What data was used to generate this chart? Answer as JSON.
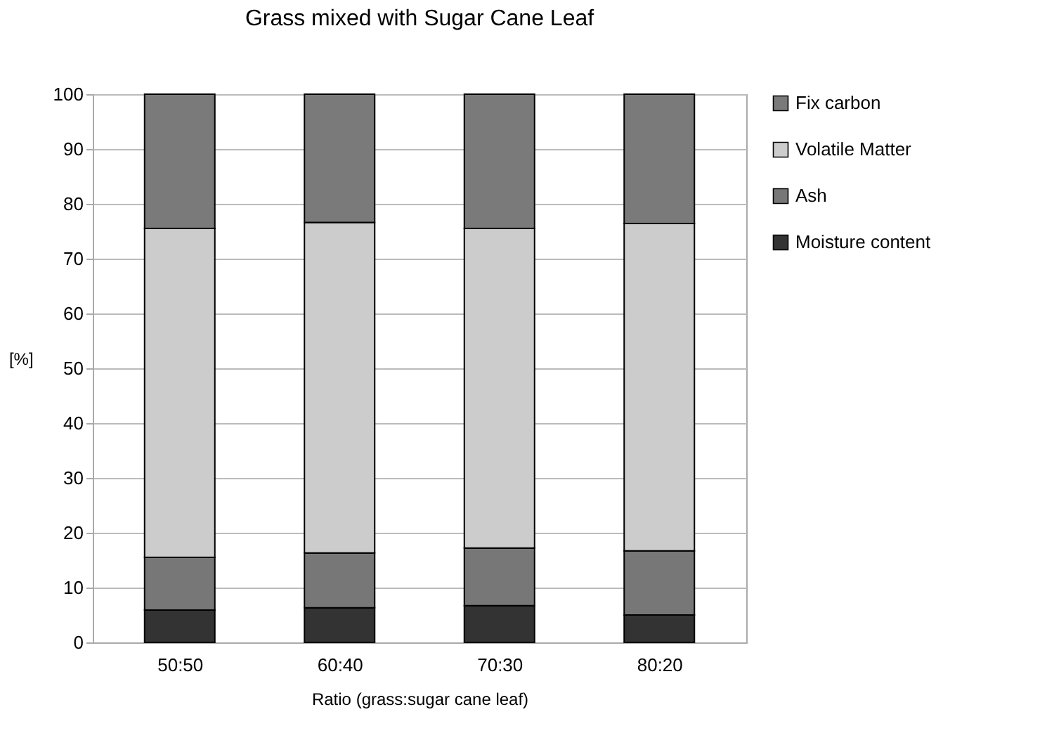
{
  "chart_data": {
    "type": "bar",
    "title": "Grass mixed with Sugar Cane Leaf",
    "xlabel": "Ratio (grass:sugar cane leaf)",
    "ylabel": "[%]",
    "categories": [
      "50:50",
      "60:40",
      "70:30",
      "80:20"
    ],
    "stacked": true,
    "series": [
      {
        "name": "Moisture content",
        "color": "#333333",
        "values": [
          5.9,
          6.3,
          6.7,
          5.0
        ]
      },
      {
        "name": "Ash",
        "color": "#777777",
        "values": [
          9.6,
          10.0,
          10.5,
          11.7
        ]
      },
      {
        "name": "Volatile Matter",
        "color": "#cccccc",
        "values": [
          60.0,
          60.3,
          58.3,
          59.7
        ]
      },
      {
        "name": "Fix carbon",
        "color": "#7a7a7a",
        "values": [
          24.5,
          23.4,
          24.5,
          23.6
        ]
      }
    ],
    "ylim": [
      0,
      100
    ],
    "yticks": [
      0,
      10,
      20,
      30,
      40,
      50,
      60,
      70,
      80,
      90,
      100
    ],
    "grid": "y",
    "legend": "right"
  }
}
